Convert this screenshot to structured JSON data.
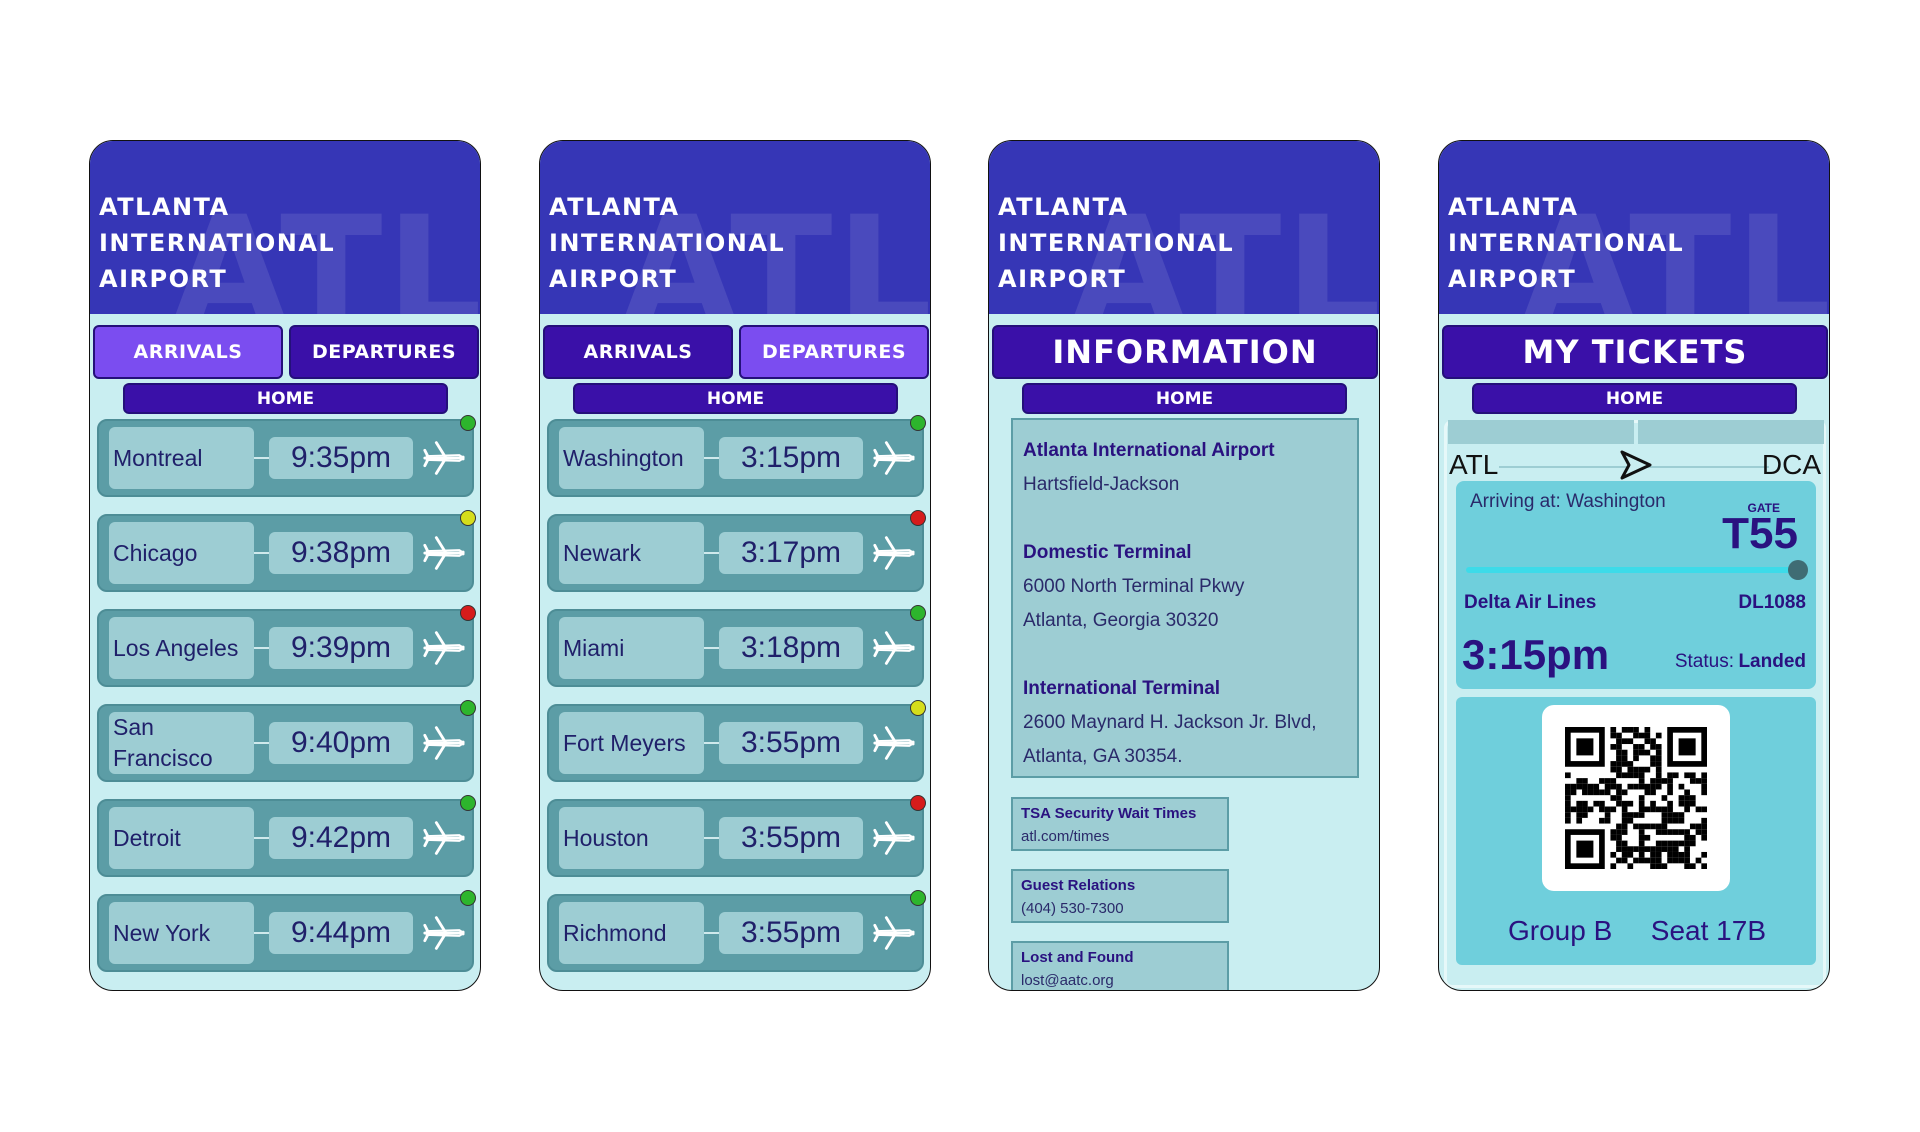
{
  "screens": [
    {
      "title_lines": [
        "ATLANTA",
        "INTERNATIONAL",
        "AIRPORT"
      ],
      "watermark": "ATL",
      "tabs": [
        "ARRIVALS",
        "DEPARTURES"
      ],
      "active_tab": 0,
      "home": "HOME",
      "flights": [
        {
          "city": "Montreal",
          "time": "9:35pm",
          "status_color": "#2db52d"
        },
        {
          "city": "Chicago",
          "time": "9:38pm",
          "status_color": "#d6dd1c"
        },
        {
          "city": "Los Angeles",
          "time": "9:39pm",
          "status_color": "#d61c1c"
        },
        {
          "city": "San Francisco",
          "time": "9:40pm",
          "status_color": "#2db52d"
        },
        {
          "city": "Detroit",
          "time": "9:42pm",
          "status_color": "#2db52d"
        },
        {
          "city": "New York",
          "time": "9:44pm",
          "status_color": "#2db52d"
        }
      ]
    },
    {
      "title_lines": [
        "ATLANTA",
        "INTERNATIONAL",
        "AIRPORT"
      ],
      "watermark": "ATL",
      "tabs": [
        "ARRIVALS",
        "DEPARTURES"
      ],
      "active_tab": 1,
      "home": "HOME",
      "flights": [
        {
          "city": "Washington",
          "time": "3:15pm",
          "status_color": "#2db52d"
        },
        {
          "city": "Newark",
          "time": "3:17pm",
          "status_color": "#d61c1c"
        },
        {
          "city": "Miami",
          "time": "3:18pm",
          "status_color": "#2db52d"
        },
        {
          "city": "Fort Meyers",
          "time": "3:55pm",
          "status_color": "#d6dd1c"
        },
        {
          "city": "Houston",
          "time": "3:55pm",
          "status_color": "#d61c1c"
        },
        {
          "city": "Richmond",
          "time": "3:55pm",
          "status_color": "#2db52d"
        }
      ]
    },
    {
      "title_lines": [
        "ATLANTA",
        "INTERNATIONAL",
        "AIRPORT"
      ],
      "watermark": "ATL",
      "banner": "INFORMATION",
      "home": "HOME",
      "info": [
        {
          "heading": "Atlanta International Airport",
          "lines": [
            "Hartsfield-Jackson"
          ]
        },
        {
          "heading": "Domestic Terminal",
          "lines": [
            "6000 North Terminal Pkwy",
            "Atlanta, Georgia 30320"
          ]
        },
        {
          "heading": "International Terminal",
          "lines": [
            "2600 Maynard H. Jackson Jr. Blvd,",
            "Atlanta, GA 30354."
          ]
        }
      ],
      "links": [
        {
          "title": "TSA Security Wait Times",
          "detail": "atl.com/times"
        },
        {
          "title": "Guest Relations",
          "detail": "(404) 530-7300"
        },
        {
          "title": "Lost and Found",
          "detail": "lost@aatc.org"
        }
      ]
    },
    {
      "title_lines": [
        "ATLANTA",
        "INTERNATIONAL",
        "AIRPORT"
      ],
      "watermark": "ATL",
      "banner": "MY TICKETS",
      "home": "HOME",
      "ticket": {
        "from": "ATL",
        "to": "DCA",
        "arriving": "Arriving at: Washington",
        "gate_label": "GATE",
        "gate": "T55",
        "airline": "Delta Air Lines",
        "flight": "DL1088",
        "time": "3:15pm",
        "status_label": "Status:",
        "status": "Landed",
        "group": "Group B",
        "seat": "Seat 17B"
      }
    }
  ]
}
